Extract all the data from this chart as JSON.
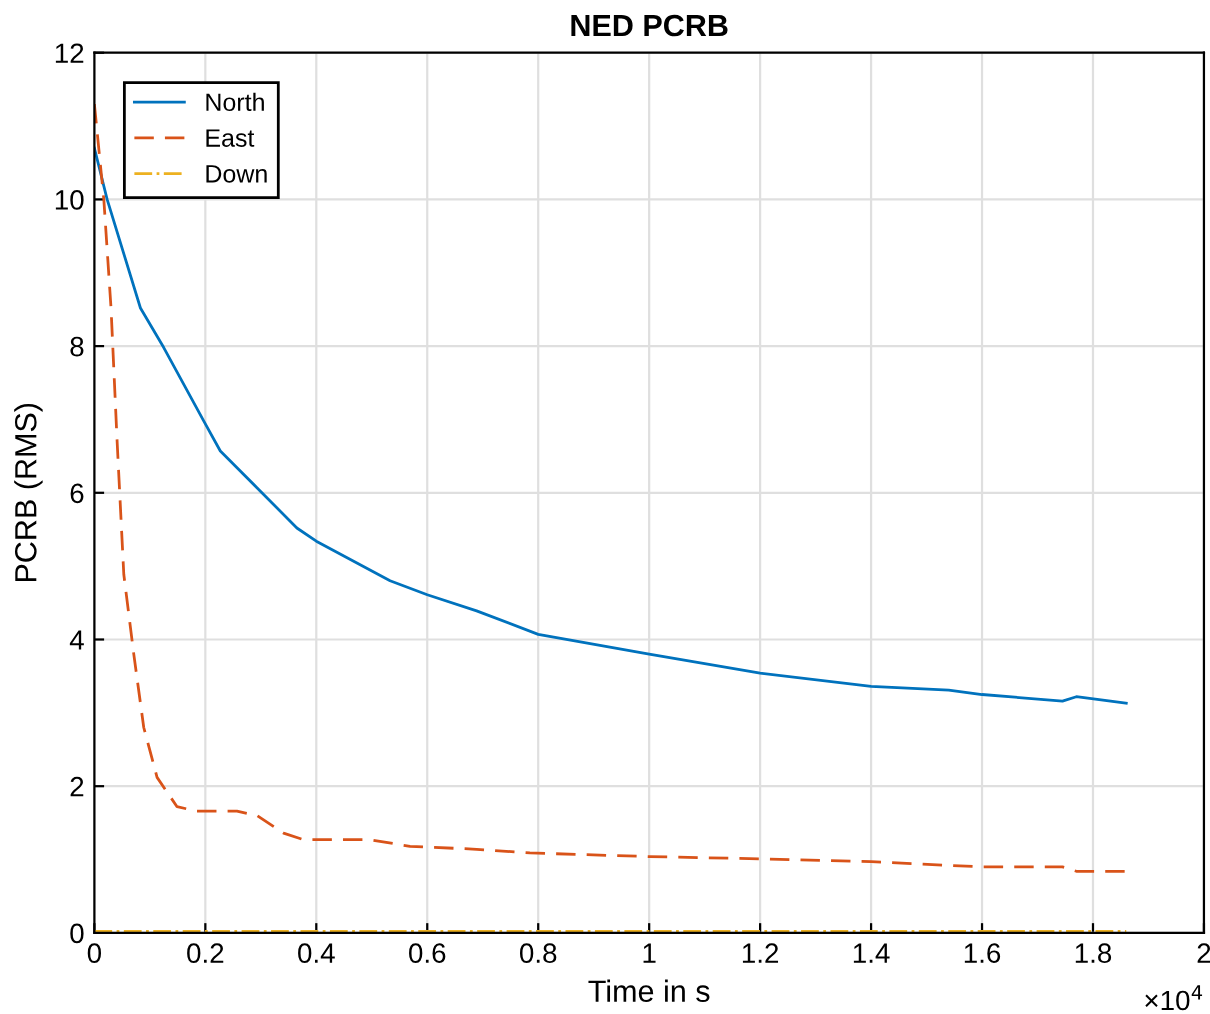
{
  "chart_data": {
    "type": "line",
    "title": "NED PCRB",
    "xlabel": "Time in s",
    "ylabel": "PCRB (RMS)",
    "annotations": [
      "×10$^{4}$"
    ],
    "xlim": [
      0,
      2
    ],
    "ylim": [
      0,
      12
    ],
    "xticks": [
      0,
      0.2,
      0.4,
      0.6,
      0.8,
      1,
      1.2,
      1.4,
      1.6,
      1.8,
      2
    ],
    "yticks": [
      0,
      2,
      4,
      6,
      8,
      10,
      12
    ],
    "grid": true,
    "legend": "top left",
    "series": [
      {
        "name": "North",
        "color": "#0072bd",
        "line_style": "solid",
        "x": [
          0,
          0.023,
          0.083,
          0.125,
          0.197,
          0.227,
          0.293,
          0.365,
          0.4,
          0.533,
          0.6,
          0.689,
          0.8,
          1.0,
          1.2,
          1.4,
          1.54,
          1.6,
          1.745,
          1.77,
          1.86
        ],
        "values": [
          10.7,
          10.0,
          8.52,
          7.98,
          6.98,
          6.57,
          6.07,
          5.52,
          5.34,
          4.8,
          4.61,
          4.39,
          4.07,
          3.8,
          3.54,
          3.36,
          3.31,
          3.25,
          3.16,
          3.22,
          3.13
        ]
      },
      {
        "name": "East",
        "color": "#d95319",
        "line_style": "dashed",
        "x": [
          0,
          0.017,
          0.03,
          0.041,
          0.053,
          0.071,
          0.089,
          0.113,
          0.149,
          0.185,
          0.257,
          0.293,
          0.341,
          0.377,
          0.497,
          0.569,
          0.689,
          0.785,
          1.0,
          1.2,
          1.4,
          1.6,
          1.745,
          1.77,
          1.86
        ],
        "values": [
          11.3,
          10.0,
          8.52,
          6.7,
          4.89,
          3.8,
          2.8,
          2.12,
          1.72,
          1.66,
          1.66,
          1.6,
          1.36,
          1.27,
          1.27,
          1.18,
          1.14,
          1.09,
          1.04,
          1.01,
          0.97,
          0.9,
          0.9,
          0.84,
          0.84
        ]
      },
      {
        "name": "Down",
        "color": "#edb120",
        "line_style": "dashdot",
        "x": [
          0,
          0.5,
          1.0,
          1.5,
          1.86
        ],
        "values": [
          0.02,
          0.02,
          0.02,
          0.02,
          0.02
        ]
      }
    ]
  }
}
